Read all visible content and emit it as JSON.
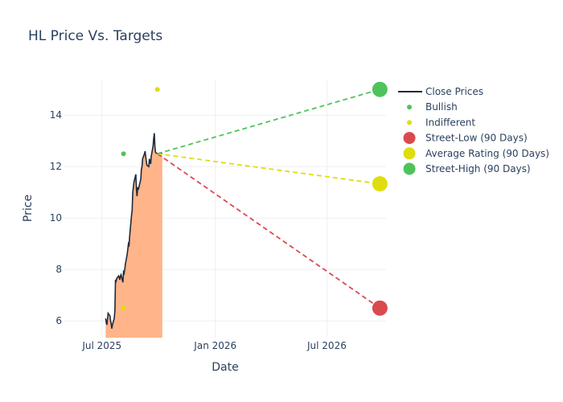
{
  "chart_data": {
    "type": "line",
    "title": "HL Price Vs. Targets",
    "xlabel": "Date",
    "ylabel": "Price",
    "x_ticks": [
      "Jul 2025",
      "Jan 2026",
      "Jul 2026"
    ],
    "x_tick_dates": [
      "2025-07-01",
      "2026-01-01",
      "2026-07-01"
    ],
    "x_range": [
      "2025-05-01",
      "2026-10-05"
    ],
    "y_ticks": [
      6,
      8,
      10,
      12,
      14
    ],
    "ylim": [
      5.35,
      15.35
    ],
    "grid": true,
    "legend_position": "top-right",
    "close_prices": {
      "name": "Close Prices",
      "color": "#1f2a3c",
      "fill_color": "#ffb48a",
      "dates": [
        "2025-07-07",
        "2025-07-08",
        "2025-07-09",
        "2025-07-10",
        "2025-07-11",
        "2025-07-14",
        "2025-07-15",
        "2025-07-16",
        "2025-07-17",
        "2025-07-18",
        "2025-07-21",
        "2025-07-22",
        "2025-07-23",
        "2025-07-24",
        "2025-07-25",
        "2025-07-28",
        "2025-07-29",
        "2025-07-30",
        "2025-07-31",
        "2025-08-01",
        "2025-08-04",
        "2025-08-05",
        "2025-08-06",
        "2025-08-07",
        "2025-08-08",
        "2025-08-11",
        "2025-08-12",
        "2025-08-13",
        "2025-08-14",
        "2025-08-15",
        "2025-08-18",
        "2025-08-19",
        "2025-08-20",
        "2025-08-21",
        "2025-08-22",
        "2025-08-25",
        "2025-08-26",
        "2025-08-27",
        "2025-08-28",
        "2025-08-29",
        "2025-09-02",
        "2025-09-03",
        "2025-09-04",
        "2025-09-05",
        "2025-09-08",
        "2025-09-09",
        "2025-09-10",
        "2025-09-11",
        "2025-09-12",
        "2025-09-15",
        "2025-09-16",
        "2025-09-17",
        "2025-09-18",
        "2025-09-19",
        "2025-09-22",
        "2025-09-23",
        "2025-09-24",
        "2025-09-25",
        "2025-09-26",
        "2025-09-29",
        "2025-09-30",
        "2025-10-01",
        "2025-10-02",
        "2025-10-03",
        "2025-10-06",
        "2025-10-07"
      ],
      "values": [
        6.1,
        5.95,
        5.85,
        6.05,
        6.3,
        6.2,
        6.0,
        5.9,
        5.7,
        5.85,
        6.1,
        6.4,
        7.6,
        7.55,
        7.65,
        7.75,
        7.7,
        7.6,
        7.75,
        7.8,
        7.5,
        7.9,
        7.85,
        8.0,
        8.2,
        8.6,
        8.8,
        9.0,
        8.95,
        9.3,
        10.1,
        10.3,
        11.0,
        11.2,
        11.4,
        11.7,
        11.1,
        10.85,
        11.2,
        11.1,
        11.5,
        11.9,
        12.0,
        12.3,
        12.5,
        12.6,
        12.4,
        12.2,
        12.05,
        12.0,
        12.3,
        12.2,
        12.1,
        12.4,
        12.8,
        13.1,
        13.3,
        12.75,
        12.55,
        12.5,
        12.5,
        12.5,
        12.45,
        12.5,
        12.5,
        12.5
      ]
    },
    "ratings": [
      {
        "name": "Bullish",
        "color": "#4fc35a",
        "points": [
          {
            "date": "2025-08-05",
            "value": 12.5
          }
        ]
      },
      {
        "name": "Indifferent",
        "color": "#e0dd0f",
        "points": [
          {
            "date": "2025-08-05",
            "value": 6.5
          },
          {
            "date": "2025-09-29",
            "value": 15.0
          }
        ]
      }
    ],
    "targets": {
      "start_date": "2025-09-29",
      "start_value": 12.5,
      "end_date": "2026-09-25",
      "series": [
        {
          "name": "Street-Low (90 Days)",
          "color": "#d94a4f",
          "value": 6.5
        },
        {
          "name": "Average Rating (90 Days)",
          "color": "#e0dd0f",
          "value": 11.33
        },
        {
          "name": "Street-High (90 Days)",
          "color": "#4fc35a",
          "value": 15.0
        }
      ]
    }
  }
}
